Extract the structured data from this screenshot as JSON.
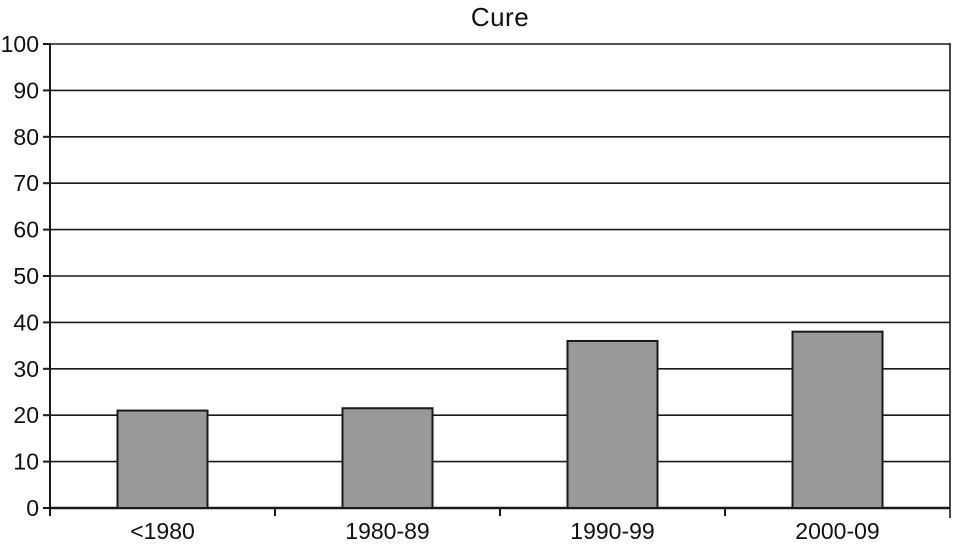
{
  "chart_data": {
    "type": "bar",
    "title": "Cure",
    "categories": [
      "<1980",
      "1980-89",
      "1990-99",
      "2000-09"
    ],
    "values": [
      21,
      21.5,
      36,
      38
    ],
    "xlabel": "",
    "ylabel": "",
    "ylim": [
      0,
      100
    ],
    "yticks": [
      0,
      10,
      20,
      30,
      40,
      50,
      60,
      70,
      80,
      90,
      100
    ],
    "ytick_step": 10,
    "grid": true,
    "legend": "none",
    "bar_color": "#999999",
    "bar_border_color": "#1a1a1a",
    "axis_color": "#1a1a1a",
    "text_color": "#111111",
    "background_color": "#ffffff"
  }
}
